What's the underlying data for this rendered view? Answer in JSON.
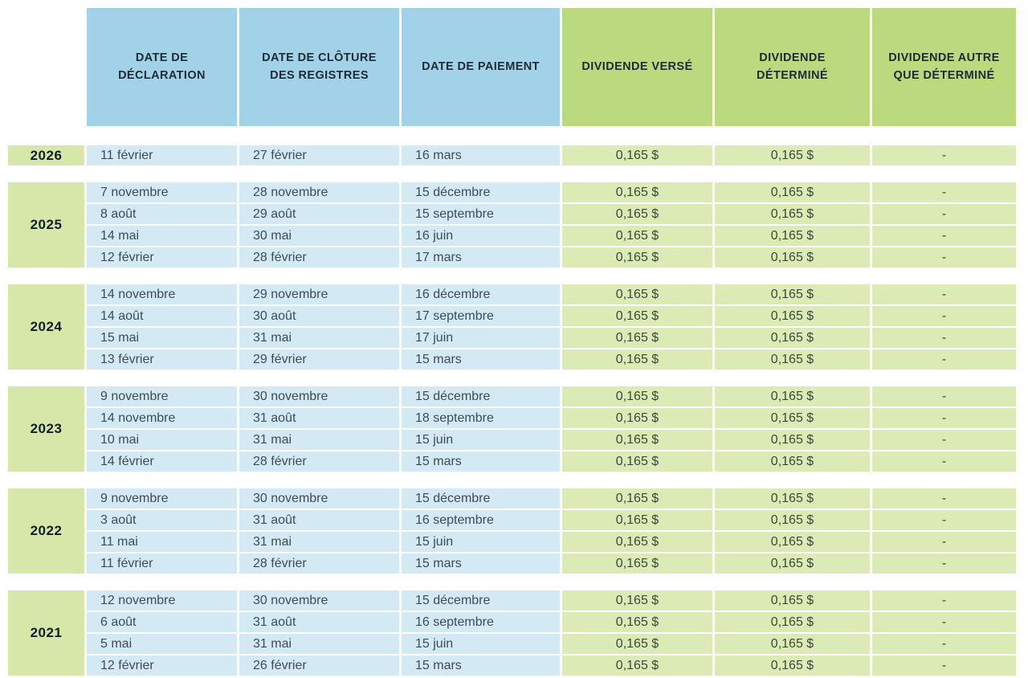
{
  "colors": {
    "header_blue": "#a2d2e7",
    "header_green": "#bada7d",
    "row_blue": "#d3e9f4",
    "row_green": "#dcebb6",
    "year_cell_green": "#d7e6a9",
    "header_text": "#1c2b36",
    "cell_text": "#3d4c57"
  },
  "chart_data": {
    "type": "table",
    "title": "",
    "columns": [
      "DATE DE DÉCLARATION",
      "DATE DE CLÔTURE DES REGISTRES",
      "DATE DE PAIEMENT",
      "DIVIDENDE VERSÉ",
      "DIVIDENDE DÉTERMINÉ",
      "DIVIDENDE AUTRE QUE DÉTERMINÉ"
    ],
    "column_groups": [
      "dates",
      "dates",
      "dates",
      "dividends",
      "dividends",
      "dividends"
    ],
    "year_groups": [
      {
        "year": "2026",
        "rows": [
          [
            "11 février",
            "27 février",
            "16 mars",
            "0,165 $",
            "0,165 $",
            "-"
          ]
        ]
      },
      {
        "year": "2025",
        "rows": [
          [
            "7 novembre",
            "28 novembre",
            "15 décembre",
            "0,165 $",
            "0,165 $",
            "-"
          ],
          [
            "8 août",
            "29 août",
            "15 septembre",
            "0,165 $",
            "0,165 $",
            "-"
          ],
          [
            "14 mai",
            "30 mai",
            "16 juin",
            "0,165 $",
            "0,165 $",
            "-"
          ],
          [
            "12 février",
            "28 février",
            "17 mars",
            "0,165 $",
            "0,165 $",
            "-"
          ]
        ]
      },
      {
        "year": "2024",
        "rows": [
          [
            "14 novembre",
            "29 novembre",
            "16 décembre",
            "0,165 $",
            "0,165 $",
            "-"
          ],
          [
            "14 août",
            "30 août",
            "17 septembre",
            "0,165 $",
            "0,165 $",
            "-"
          ],
          [
            "15 mai",
            "31 mai",
            "17 juin",
            "0,165 $",
            "0,165 $",
            "-"
          ],
          [
            "13 février",
            "29 février",
            "15 mars",
            "0,165 $",
            "0,165 $",
            "-"
          ]
        ]
      },
      {
        "year": "2023",
        "rows": [
          [
            "9 novembre",
            "30 novembre",
            "15 décembre",
            "0,165 $",
            "0,165 $",
            "-"
          ],
          [
            "14 novembre",
            "31 août",
            "18 septembre",
            "0,165 $",
            "0,165 $",
            "-"
          ],
          [
            "10 mai",
            "31 mai",
            "15 juin",
            "0,165 $",
            "0,165 $",
            "-"
          ],
          [
            "14 février",
            "28 février",
            "15 mars",
            "0,165 $",
            "0,165 $",
            "-"
          ]
        ]
      },
      {
        "year": "2022",
        "rows": [
          [
            "9 novembre",
            "30 novembre",
            "15 décembre",
            "0,165 $",
            "0,165 $",
            "-"
          ],
          [
            "3 août",
            "31 août",
            "16 septembre",
            "0,165 $",
            "0,165 $",
            "-"
          ],
          [
            "11 mai",
            "31 mai",
            "15 juin",
            "0,165 $",
            "0,165 $",
            "-"
          ],
          [
            "11 février",
            "28 février",
            "15 mars",
            "0,165 $",
            "0,165 $",
            "-"
          ]
        ]
      },
      {
        "year": "2021",
        "rows": [
          [
            "12 novembre",
            "30 novembre",
            "15 décembre",
            "0,165 $",
            "0,165 $",
            "-"
          ],
          [
            "6 août",
            "31 août",
            "16 septembre",
            "0,165 $",
            "0,165 $",
            "-"
          ],
          [
            "5 mai",
            "31 mai",
            "15 juin",
            "0,165 $",
            "0,165 $",
            "-"
          ],
          [
            "12 février",
            "26 février",
            "15 mars",
            "0,165 $",
            "0,165 $",
            "-"
          ]
        ]
      }
    ]
  }
}
